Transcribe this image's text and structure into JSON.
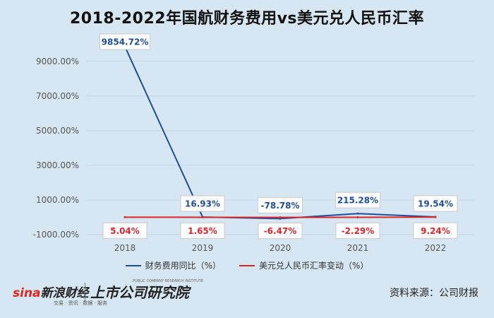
{
  "title": "2018-2022年国航财务费用vs美元兑人民币汇率",
  "source_text": "资料来源：公司财报",
  "brand": {
    "sina_logo": "sina新浪财经",
    "sina_sub": "交易 · 资讯 · 数据 · 服务",
    "ssr_logo": "上市公司研究院",
    "ssr_sub": "PUBLIC COMPANY RESEARCH INSTITUTE"
  },
  "colors": {
    "series1": "#1f4e96",
    "series2": "#d9262b",
    "background": "#d6e7f3"
  },
  "chart_data": {
    "type": "line",
    "title": "2018-2022年国航财务费用vs美元兑人民币汇率",
    "categories": [
      "2018",
      "2019",
      "2020",
      "2021",
      "2022"
    ],
    "y_ticks": [
      "9000.00%",
      "7000.00%",
      "5000.00%",
      "3000.00%",
      "1000.00%",
      "-1000.00%"
    ],
    "ylim": [
      -1000,
      10500
    ],
    "grid": true,
    "legend_position": "bottom",
    "series": [
      {
        "name": "财务费用同比（%）",
        "values": [
          9854.72,
          16.93,
          -78.78,
          215.28,
          19.54
        ],
        "labels": [
          "9854.72%",
          "16.93%",
          "-78.78%",
          "215.28%",
          "19.54%"
        ]
      },
      {
        "name": "美元兑人民币汇率变动（%）",
        "values": [
          5.04,
          1.65,
          -6.47,
          -2.29,
          9.24
        ],
        "labels": [
          "5.04%",
          "1.65%",
          "-6.47%",
          "-2.29%",
          "9.24%"
        ]
      }
    ]
  }
}
